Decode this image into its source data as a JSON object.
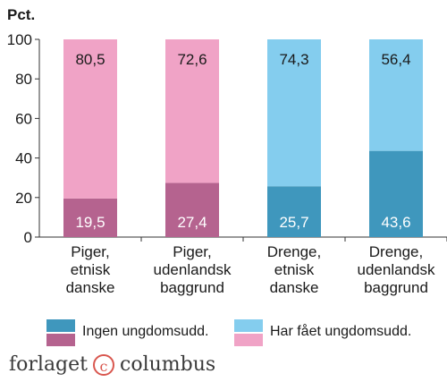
{
  "colors": {
    "girls_without": "#b5638f",
    "girls_with": "#f0a3c6",
    "boys_without": "#3f97bd",
    "boys_with": "#84cdee",
    "axis": "#333333",
    "grid": "#000000"
  },
  "chart_data": {
    "type": "bar",
    "stacked": true,
    "y_unit_label": "Pct.",
    "ylim": [
      0,
      100
    ],
    "yticks": [
      0,
      20,
      40,
      60,
      80,
      100
    ],
    "categories": [
      [
        "Piger,",
        "etnisk",
        "danske"
      ],
      [
        "Piger,",
        "udenlandsk",
        "baggrund"
      ],
      [
        "Drenge,",
        "etnisk",
        "danske"
      ],
      [
        "Drenge,",
        "udenlandsk",
        "baggrund"
      ]
    ],
    "series": [
      {
        "name": "Ingen ungdomsudd.",
        "values": [
          19.5,
          27.4,
          25.7,
          43.6
        ],
        "labels": [
          "19,5",
          "27,4",
          "25,7",
          "43,6"
        ]
      },
      {
        "name": "Har fået ungdomsudd.",
        "values": [
          80.5,
          72.6,
          74.3,
          56.4
        ],
        "labels": [
          "80,5",
          "72,6",
          "74,3",
          "56,4"
        ]
      }
    ],
    "bar_colors": [
      [
        "#b5638f",
        "#f0a3c6"
      ],
      [
        "#b5638f",
        "#f0a3c6"
      ],
      [
        "#3f97bd",
        "#84cdee"
      ],
      [
        "#3f97bd",
        "#84cdee"
      ]
    ],
    "grid": false,
    "legend_position": "bottom"
  },
  "legend": {
    "items": [
      {
        "label": "Ingen ungdomsudd.",
        "colors": [
          "#3f97bd",
          "#b5638f"
        ]
      },
      {
        "label": "Har fået ungdomsudd.",
        "colors": [
          "#84cdee",
          "#f0a3c6"
        ]
      }
    ]
  },
  "publisher": {
    "name_left": "forlaget",
    "mark": "c",
    "name_right": "columbus"
  }
}
